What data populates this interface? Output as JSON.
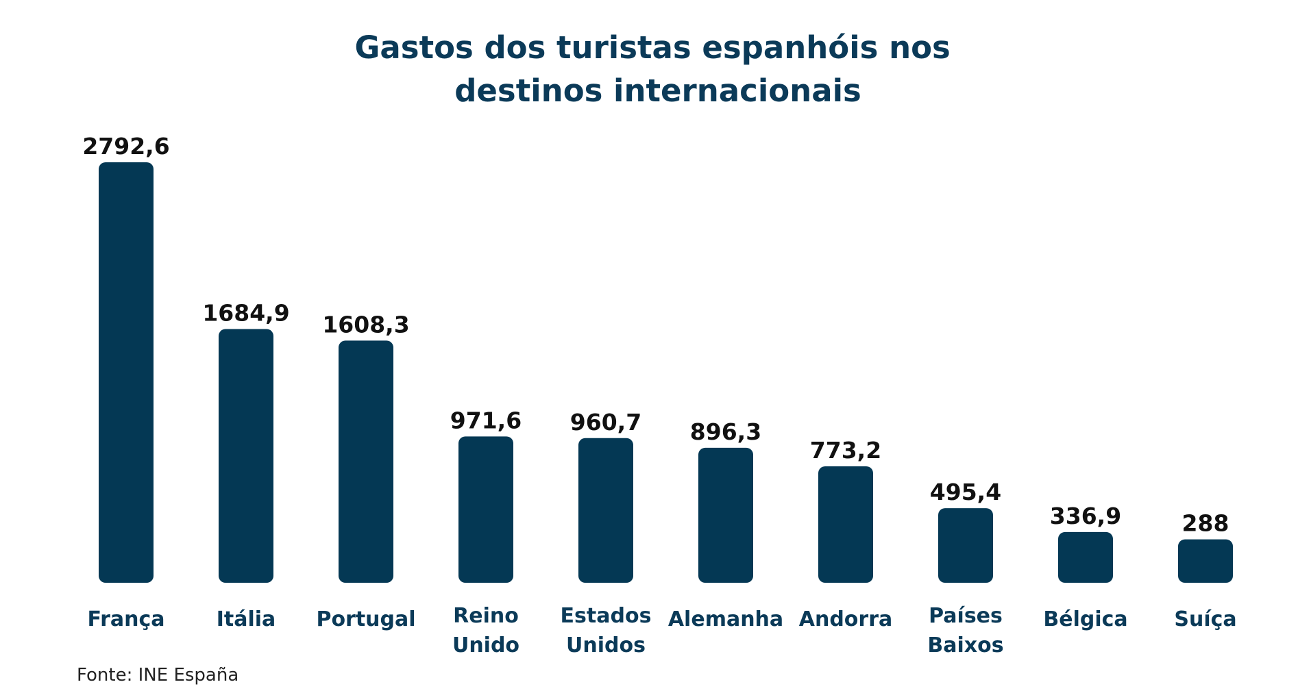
{
  "source": "Fonte: INE España",
  "colors": {
    "bar": "#043854",
    "title": "#0b3a58",
    "value_label": "#111111",
    "category_label": "#0b3a58",
    "background": "#ffffff"
  },
  "chart_data": {
    "type": "bar",
    "title": "Gastos dos turistas espanhóis nos destinos internacionais",
    "title_lines": [
      "Gastos dos turistas espanhóis nos",
      "destinos internacionais"
    ],
    "xlabel": "",
    "ylabel": "",
    "categories": [
      "França",
      "Itália",
      "Portugal",
      "Reino Unido",
      "Estados Unidos",
      "Alemanha",
      "Andorra",
      "Países Baixos",
      "Bélgica",
      "Suíça"
    ],
    "category_lines": [
      [
        "França"
      ],
      [
        "Itália"
      ],
      [
        "Portugal"
      ],
      [
        "Reino",
        "Unido"
      ],
      [
        "Estados",
        "Unidos"
      ],
      [
        "Alemanha"
      ],
      [
        "Andorra"
      ],
      [
        "Países",
        "Baixos"
      ],
      [
        "Bélgica"
      ],
      [
        "Suíça"
      ]
    ],
    "values": [
      2792.6,
      1684.9,
      1608.3,
      971.6,
      960.7,
      896.3,
      773.2,
      495.4,
      336.9,
      288
    ],
    "value_labels": [
      "2792,6",
      "1684,9",
      "1608,3",
      "971,6",
      "960,7",
      "896,3",
      "773,2",
      "495,4",
      "336,9",
      "288"
    ],
    "ylim": [
      0,
      2792.6
    ],
    "grid": false,
    "legend": "none"
  }
}
